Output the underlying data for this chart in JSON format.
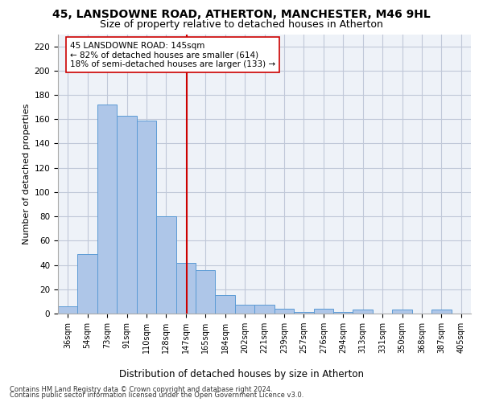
{
  "title1": "45, LANSDOWNE ROAD, ATHERTON, MANCHESTER, M46 9HL",
  "title2": "Size of property relative to detached houses in Atherton",
  "xlabel": "Distribution of detached houses by size in Atherton",
  "ylabel": "Number of detached properties",
  "footer1": "Contains HM Land Registry data © Crown copyright and database right 2024.",
  "footer2": "Contains public sector information licensed under the Open Government Licence v3.0.",
  "annotation_line1": "45 LANSDOWNE ROAD: 145sqm",
  "annotation_line2": "← 82% of detached houses are smaller (614)",
  "annotation_line3": "18% of semi-detached houses are larger (133) →",
  "bar_color": "#aec6e8",
  "bar_edge_color": "#5b9bd5",
  "reference_line_x": 145,
  "categories": [
    "36sqm",
    "54sqm",
    "73sqm",
    "91sqm",
    "110sqm",
    "128sqm",
    "147sqm",
    "165sqm",
    "184sqm",
    "202sqm",
    "221sqm",
    "239sqm",
    "257sqm",
    "276sqm",
    "294sqm",
    "313sqm",
    "331sqm",
    "350sqm",
    "368sqm",
    "387sqm",
    "405sqm"
  ],
  "bin_edges": [
    27,
    45,
    63,
    81,
    99,
    117,
    135,
    153,
    171,
    189,
    207,
    225,
    243,
    261,
    279,
    297,
    315,
    333,
    351,
    369,
    387,
    405
  ],
  "values": [
    6,
    49,
    172,
    163,
    159,
    80,
    42,
    36,
    15,
    7,
    7,
    4,
    1,
    4,
    1,
    3,
    0,
    3,
    0,
    3,
    0
  ],
  "ylim": [
    0,
    230
  ],
  "yticks": [
    0,
    20,
    40,
    60,
    80,
    100,
    120,
    140,
    160,
    180,
    200,
    220
  ],
  "grid_color": "#c0c8d8",
  "background_color": "#eef2f8",
  "ref_color": "#cc0000",
  "title1_fontsize": 10,
  "title2_fontsize": 9,
  "xlabel_fontsize": 8.5,
  "ylabel_fontsize": 8,
  "annot_fontsize": 7.5,
  "footer_fontsize": 6.0
}
